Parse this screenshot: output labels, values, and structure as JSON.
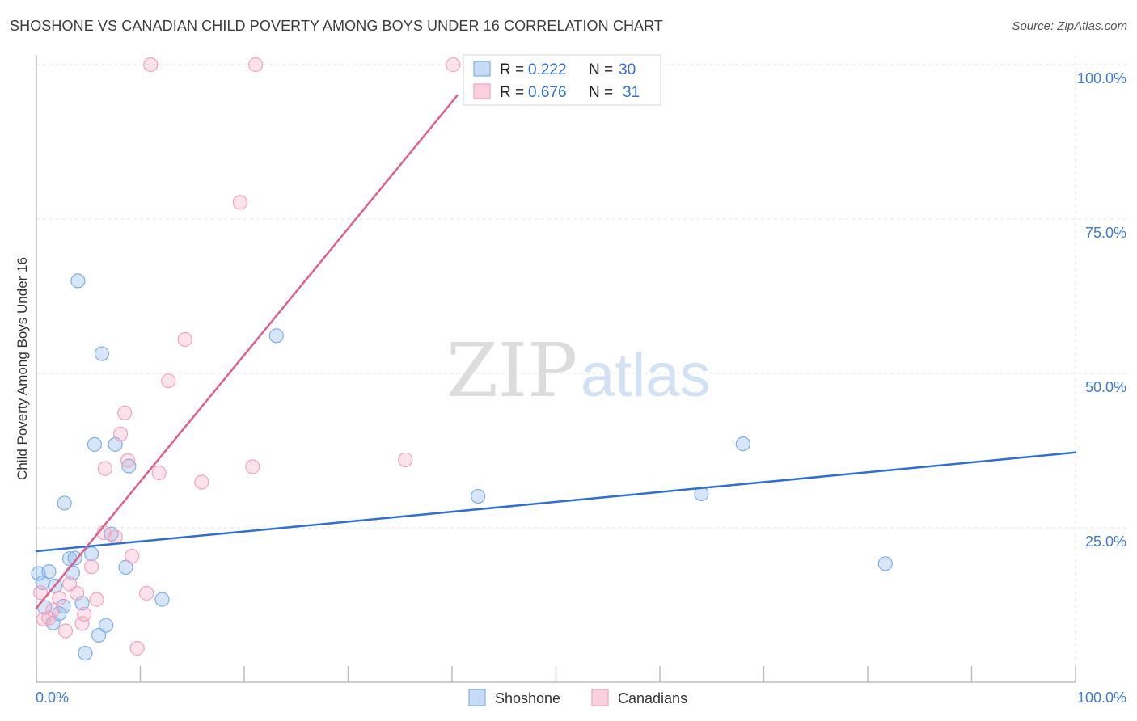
{
  "title": "SHOSHONE VS CANADIAN CHILD POVERTY AMONG BOYS UNDER 16 CORRELATION CHART",
  "source": "Source: ZipAtlas.com",
  "watermark": {
    "part1": "ZIP",
    "part2": "atlas"
  },
  "chart_data": {
    "type": "scatter",
    "title": "SHOSHONE VS CANADIAN CHILD POVERTY AMONG BOYS UNDER 16 CORRELATION CHART",
    "xlabel": "",
    "ylabel": "Child Poverty Among Boys Under 16",
    "xlim": [
      0,
      100
    ],
    "ylim": [
      0,
      100
    ],
    "x_tick_labels": {
      "left": "0.0%",
      "right": "100.0%"
    },
    "y_ticks": [
      {
        "value": 100,
        "label": "100.0%"
      },
      {
        "value": 75,
        "label": "75.0%"
      },
      {
        "value": 50,
        "label": "50.0%"
      },
      {
        "value": 25,
        "label": "25.0%"
      }
    ],
    "grid": true,
    "legend_position": "top-center",
    "series": [
      {
        "name": "Shoshone",
        "color": "#7fb0ea",
        "line_color": "#2f6fcf",
        "R": "0.222",
        "N": "30",
        "trend": {
          "x": [
            0,
            100
          ],
          "y": [
            21.2,
            37.2
          ]
        },
        "points": [
          {
            "x": 0.2,
            "y": 17.6
          },
          {
            "x": 0.6,
            "y": 16.1
          },
          {
            "x": 0.8,
            "y": 12.1
          },
          {
            "x": 1.2,
            "y": 17.9
          },
          {
            "x": 1.6,
            "y": 9.6
          },
          {
            "x": 1.8,
            "y": 15.6
          },
          {
            "x": 2.2,
            "y": 11.1
          },
          {
            "x": 2.6,
            "y": 12.3
          },
          {
            "x": 2.7,
            "y": 29.0
          },
          {
            "x": 3.2,
            "y": 20.0
          },
          {
            "x": 3.5,
            "y": 17.7
          },
          {
            "x": 3.7,
            "y": 20.1
          },
          {
            "x": 4.0,
            "y": 65.0
          },
          {
            "x": 4.4,
            "y": 12.8
          },
          {
            "x": 4.7,
            "y": 4.7
          },
          {
            "x": 5.3,
            "y": 20.8
          },
          {
            "x": 5.6,
            "y": 38.5
          },
          {
            "x": 6.0,
            "y": 7.6
          },
          {
            "x": 6.3,
            "y": 53.2
          },
          {
            "x": 6.7,
            "y": 9.2
          },
          {
            "x": 7.2,
            "y": 24.0
          },
          {
            "x": 7.6,
            "y": 38.5
          },
          {
            "x": 8.6,
            "y": 18.6
          },
          {
            "x": 8.9,
            "y": 35.0
          },
          {
            "x": 12.1,
            "y": 13.4
          },
          {
            "x": 23.1,
            "y": 56.1
          },
          {
            "x": 42.5,
            "y": 30.1
          },
          {
            "x": 64.0,
            "y": 30.5
          },
          {
            "x": 68.0,
            "y": 38.6
          },
          {
            "x": 81.7,
            "y": 19.2
          }
        ]
      },
      {
        "name": "Canadians",
        "color": "#f4a3bd",
        "line_color": "#e0608a",
        "R": "0.676",
        "N": "31",
        "trend": {
          "x": [
            0,
            40.5
          ],
          "y": [
            12.0,
            95.0
          ]
        },
        "points": [
          {
            "x": 0.4,
            "y": 14.5
          },
          {
            "x": 0.7,
            "y": 10.2
          },
          {
            "x": 1.2,
            "y": 10.4
          },
          {
            "x": 1.6,
            "y": 11.7
          },
          {
            "x": 2.2,
            "y": 13.6
          },
          {
            "x": 2.8,
            "y": 8.3
          },
          {
            "x": 3.2,
            "y": 15.9
          },
          {
            "x": 3.9,
            "y": 14.4
          },
          {
            "x": 4.4,
            "y": 9.5
          },
          {
            "x": 4.6,
            "y": 11.0
          },
          {
            "x": 5.3,
            "y": 18.7
          },
          {
            "x": 5.8,
            "y": 13.4
          },
          {
            "x": 6.5,
            "y": 24.2
          },
          {
            "x": 6.6,
            "y": 34.6
          },
          {
            "x": 7.6,
            "y": 23.5
          },
          {
            "x": 8.1,
            "y": 40.2
          },
          {
            "x": 8.5,
            "y": 43.6
          },
          {
            "x": 8.8,
            "y": 35.9
          },
          {
            "x": 9.2,
            "y": 20.4
          },
          {
            "x": 9.7,
            "y": 5.5
          },
          {
            "x": 10.6,
            "y": 14.4
          },
          {
            "x": 11.0,
            "y": 100.0
          },
          {
            "x": 11.8,
            "y": 33.9
          },
          {
            "x": 12.7,
            "y": 48.8
          },
          {
            "x": 14.3,
            "y": 55.5
          },
          {
            "x": 15.9,
            "y": 32.4
          },
          {
            "x": 19.6,
            "y": 77.7
          },
          {
            "x": 20.8,
            "y": 34.9
          },
          {
            "x": 21.1,
            "y": 100.0
          },
          {
            "x": 35.5,
            "y": 36.0
          },
          {
            "x": 40.1,
            "y": 100.0
          }
        ]
      }
    ]
  }
}
